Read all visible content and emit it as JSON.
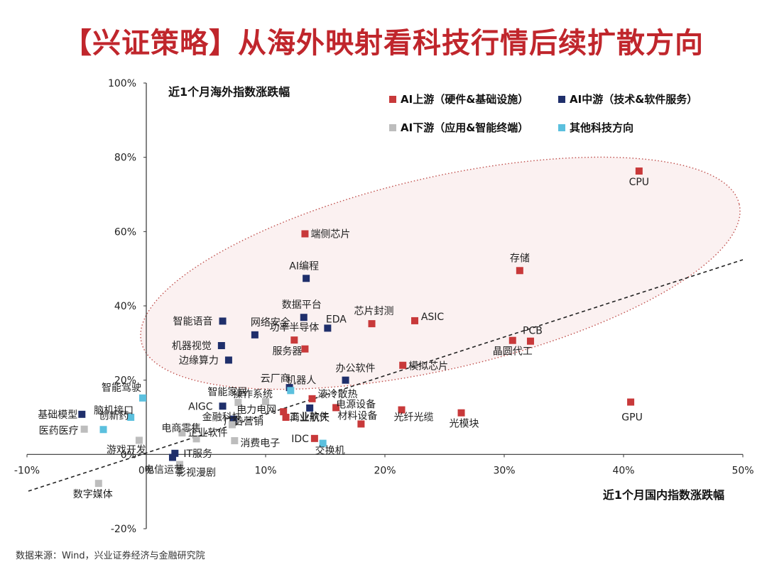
{
  "title": "【兴证策略】从海外映射看科技行情后续扩散方向",
  "source": "数据来源：Wind，兴业证券经济与金融研究院",
  "colors": {
    "up": "#c8393a",
    "mid": "#1f2f6b",
    "down": "#bdbdbd",
    "other": "#5bc0de"
  },
  "chart_data": {
    "type": "scatter",
    "title": "",
    "xlabel": "近1个月国内指数涨跌幅",
    "ylabel": "近1个月海外指数涨跌幅",
    "xlim": [
      -0.1,
      0.5
    ],
    "ylim": [
      -0.2,
      1.0
    ],
    "x_ticks": [
      "-10%",
      "0%",
      "10%",
      "20%",
      "30%",
      "40%",
      "50%"
    ],
    "y_ticks": [
      "-20%",
      "0%",
      "20%",
      "40%",
      "60%",
      "80%",
      "100%"
    ],
    "legend_position": "top-right",
    "series": [
      {
        "name": "AI上游（硬件&基础设施）",
        "key": "up",
        "points": [
          {
            "label": "CPU",
            "x": 0.413,
            "y": 0.763
          },
          {
            "label": "存储",
            "x": 0.313,
            "y": 0.495
          },
          {
            "label": "端侧芯片",
            "x": 0.133,
            "y": 0.594
          },
          {
            "label": "ASIC",
            "x": 0.225,
            "y": 0.36
          },
          {
            "label": "芯片封测",
            "x": 0.189,
            "y": 0.352
          },
          {
            "label": "PCB",
            "x": 0.322,
            "y": 0.305
          },
          {
            "label": "晶圆代工",
            "x": 0.307,
            "y": 0.307
          },
          {
            "label": "功率半导体",
            "x": 0.124,
            "y": 0.308
          },
          {
            "label": "服务器",
            "x": 0.133,
            "y": 0.284
          },
          {
            "label": "模拟芯片",
            "x": 0.215,
            "y": 0.24
          },
          {
            "label": "GPU",
            "x": 0.406,
            "y": 0.141
          },
          {
            "label": "液冷散热",
            "x": 0.139,
            "y": 0.15
          },
          {
            "label": "电源设备",
            "x": 0.159,
            "y": 0.126
          },
          {
            "label": "光纤光缆",
            "x": 0.214,
            "y": 0.12
          },
          {
            "label": "光模块",
            "x": 0.264,
            "y": 0.112
          },
          {
            "label": "电力电网",
            "x": 0.115,
            "y": 0.115
          },
          {
            "label": "工业软件",
            "x": 0.117,
            "y": 0.1
          },
          {
            "label": "材料设备",
            "x": 0.18,
            "y": 0.082
          },
          {
            "label": "IDC",
            "x": 0.141,
            "y": 0.043
          }
        ]
      },
      {
        "name": "AI中游（技术&软件服务）",
        "key": "mid",
        "points": [
          {
            "label": "AI编程",
            "x": 0.134,
            "y": 0.474
          },
          {
            "label": "数据平台",
            "x": 0.132,
            "y": 0.369
          },
          {
            "label": "EDA",
            "x": 0.152,
            "y": 0.34
          },
          {
            "label": "网络安全",
            "x": 0.091,
            "y": 0.322
          },
          {
            "label": "智能语音",
            "x": 0.064,
            "y": 0.359
          },
          {
            "label": "机器视觉",
            "x": 0.063,
            "y": 0.293
          },
          {
            "label": "边缘算力",
            "x": 0.069,
            "y": 0.254
          },
          {
            "label": "办公软件",
            "x": 0.167,
            "y": 0.2
          },
          {
            "label": "云厂商",
            "x": 0.12,
            "y": 0.18
          },
          {
            "label": "AIGC",
            "x": 0.064,
            "y": 0.13
          },
          {
            "label": "金融科技",
            "x": 0.073,
            "y": 0.095
          },
          {
            "label": "基础模型",
            "x": -0.054,
            "y": 0.108
          },
          {
            "label": "商业航天",
            "x": 0.137,
            "y": 0.125
          },
          {
            "label": "IT服务",
            "x": 0.024,
            "y": 0.003
          },
          {
            "label": "电信运营",
            "x": 0.022,
            "y": -0.008
          }
        ]
      },
      {
        "name": "AI下游（应用&智能终端）",
        "key": "down",
        "points": [
          {
            "label": "智能家居",
            "x": 0.077,
            "y": 0.14
          },
          {
            "label": "操作系统",
            "x": 0.1,
            "y": 0.142
          },
          {
            "label": "广告营销",
            "x": 0.072,
            "y": 0.08
          },
          {
            "label": "电商零售",
            "x": 0.03,
            "y": 0.058
          },
          {
            "label": "企业软件",
            "x": 0.042,
            "y": 0.042
          },
          {
            "label": "消费电子",
            "x": 0.074,
            "y": 0.037
          },
          {
            "label": "游戏开发",
            "x": -0.006,
            "y": 0.038
          },
          {
            "label": "医药医疗",
            "x": -0.052,
            "y": 0.068
          },
          {
            "label": "影视漫剧",
            "x": 0.028,
            "y": -0.027
          },
          {
            "label": "数字媒体",
            "x": -0.04,
            "y": -0.078
          }
        ]
      },
      {
        "name": "其他科技方向",
        "key": "other",
        "points": [
          {
            "label": "智能驾驶",
            "x": -0.003,
            "y": 0.152
          },
          {
            "label": "机器人",
            "x": 0.121,
            "y": 0.172
          },
          {
            "label": "脑机接口",
            "x": -0.013,
            "y": 0.1
          },
          {
            "label": "创新药",
            "x": -0.036,
            "y": 0.067
          },
          {
            "label": "交换机",
            "x": 0.148,
            "y": 0.03
          }
        ]
      }
    ],
    "annotations": [
      "trend-line-dashed",
      "ellipse-highlight-dotted"
    ]
  }
}
